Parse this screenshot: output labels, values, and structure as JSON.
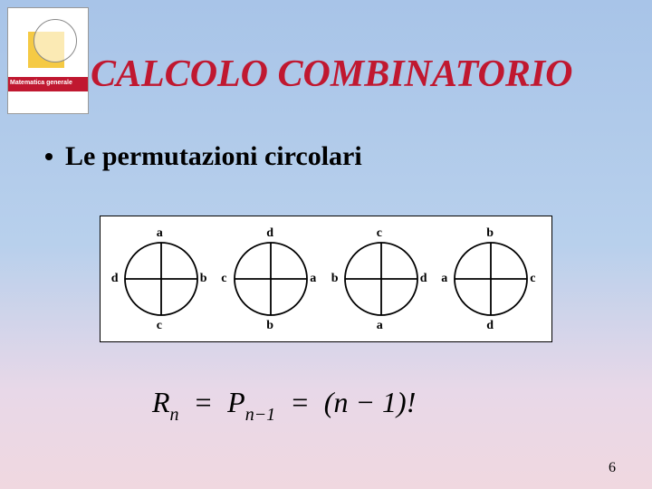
{
  "book": {
    "label": "Matematica generale"
  },
  "title": {
    "text": "CALCOLO COMBINATORIO",
    "color": "#c01830"
  },
  "bullet": {
    "text": "Le permutazioni circolari"
  },
  "circles": [
    {
      "top": "a",
      "right": "b",
      "bottom": "c",
      "left": "d"
    },
    {
      "top": "d",
      "right": "a",
      "bottom": "b",
      "left": "c"
    },
    {
      "top": "c",
      "right": "d",
      "bottom": "a",
      "left": "b"
    },
    {
      "top": "b",
      "right": "c",
      "bottom": "d",
      "left": "a"
    }
  ],
  "circle_style": {
    "radius": 40,
    "stroke": "#000000",
    "stroke_width": 1.8,
    "label_color": "#000000",
    "label_fontsize": 14
  },
  "formula": {
    "lhs_var": "R",
    "lhs_sub": "n",
    "mid_var": "P",
    "mid_sub": "n−1",
    "rhs": "(n − 1)!"
  },
  "page_number": "6"
}
